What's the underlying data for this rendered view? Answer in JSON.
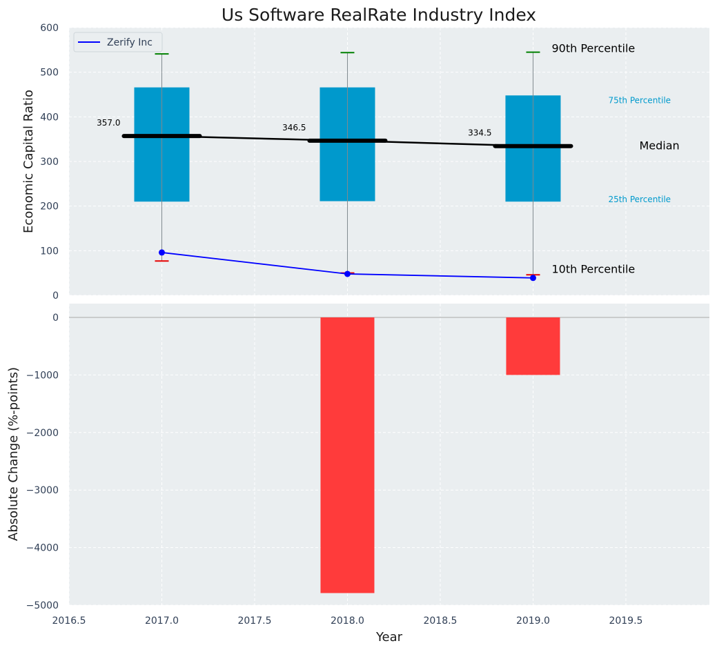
{
  "title": "Us Software RealRate Industry Index",
  "chart_data": [
    {
      "type": "box",
      "panel": "top",
      "ylabel": "Economic Capital Ratio",
      "xlabel": "",
      "ylim": [
        0,
        600
      ],
      "yticks": [
        0,
        100,
        200,
        300,
        400,
        500,
        600
      ],
      "years": [
        2017,
        2018,
        2019
      ],
      "p10": [
        77,
        50,
        46
      ],
      "p25": [
        210,
        211,
        210
      ],
      "median": [
        357.0,
        346.5,
        334.5
      ],
      "median_labels": [
        "357.0",
        "346.5",
        "334.5"
      ],
      "p75": [
        466,
        466,
        448
      ],
      "p90": [
        541,
        544,
        545
      ],
      "series": [
        {
          "name": "Zerify Inc",
          "color": "#0000ff",
          "values": [
            96,
            48,
            39
          ]
        }
      ],
      "legend": "upper-left",
      "annotations": {
        "p90": "90th Percentile",
        "p75": "75th Percentile",
        "median": "Median",
        "p25": "25th Percentile",
        "p10": "10th Percentile"
      },
      "colors": {
        "box": "#0099cc",
        "median": "#000000",
        "p90_cap": "#008000",
        "p10_cap": "#e60000",
        "whisker": "#808a8f",
        "series": "#0000ff",
        "annotation_small": "#009acd"
      },
      "grid": true
    },
    {
      "type": "bar",
      "panel": "bottom",
      "ylabel": "Absolute Change (%-points)",
      "xlabel": "Year",
      "ylim": [
        -5000,
        0
      ],
      "yticks": [
        0,
        -1000,
        -2000,
        -3000,
        -4000,
        -5000
      ],
      "ytick_labels": [
        "0",
        "−1000",
        "−2000",
        "−3000",
        "−4000",
        "−5000"
      ],
      "x": [
        2018,
        2019
      ],
      "values": [
        -4790,
        -1000
      ],
      "bar_color": "#ff3b3b",
      "xlim": [
        2016.5,
        2019.95
      ],
      "xticks": [
        2016.5,
        2017.0,
        2017.5,
        2018.0,
        2018.5,
        2019.0,
        2019.5
      ],
      "xtick_labels": [
        "2016.5",
        "2017.0",
        "2017.5",
        "2018.0",
        "2018.5",
        "2019.0",
        "2019.5"
      ],
      "grid": true
    }
  ]
}
